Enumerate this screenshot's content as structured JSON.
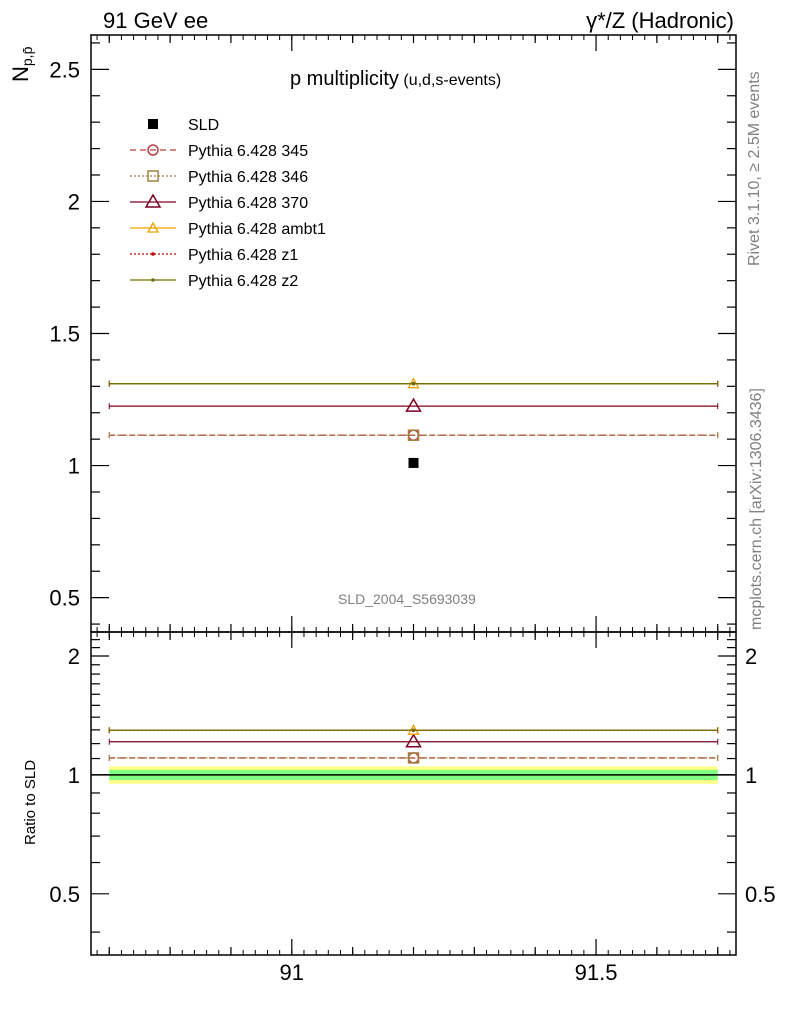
{
  "header": {
    "left": "91 GeV ee",
    "right": "γ*/Z (Hadronic)"
  },
  "side": {
    "rivet": "Rivet 3.1.10, ≥ 2.5M events",
    "mcplots": "mcplots.cern.ch [arXiv:1306.3436]"
  },
  "chart_data": {
    "type": "scatter",
    "title_main": "p multiplicity",
    "title_sub": "(u,d,s-events)",
    "watermark": "SLD_2004_S5693039",
    "ylabel_main": "N",
    "ylabel_sub": "p,p̄",
    "ylabel_ratio": "Ratio to SLD",
    "xlim": [
      90.67,
      91.73
    ],
    "ylim_main": [
      0.37,
      2.63
    ],
    "ylim_ratio": [
      0.35,
      2.3
    ],
    "x_ticks": [
      {
        "value": 91,
        "label": "91"
      },
      {
        "value": 91.5,
        "label": "91.5"
      }
    ],
    "y_ticks_main": [
      {
        "value": 0.5,
        "label": "0.5"
      },
      {
        "value": 1,
        "label": "1"
      },
      {
        "value": 1.5,
        "label": "1.5"
      },
      {
        "value": 2,
        "label": "2"
      },
      {
        "value": 2.5,
        "label": "2.5"
      }
    ],
    "y_ticks_ratio": [
      {
        "value": 0.5,
        "label": "0.5"
      },
      {
        "value": 1,
        "label": "1"
      },
      {
        "value": 2,
        "label": "2"
      }
    ],
    "data": {
      "name": "SLD",
      "x": 91.2,
      "y": 1.01,
      "color": "#000000",
      "ratio_band": [
        0.97,
        1.03
      ],
      "ratio_band_outer": [
        0.95,
        1.05
      ]
    },
    "series": [
      {
        "name": "Pythia 6.428 345",
        "y": 1.115,
        "ratio": 1.104,
        "color": "#bf3f3f",
        "dash": "6,4",
        "marker": "circle-open"
      },
      {
        "name": "Pythia 6.428 346",
        "y": 1.115,
        "ratio": 1.104,
        "color": "#a08040",
        "dash": "2,2",
        "marker": "square-open"
      },
      {
        "name": "Pythia 6.428 370",
        "y": 1.225,
        "ratio": 1.213,
        "color": "#7f0020",
        "dash": "",
        "marker": "triangle-open"
      },
      {
        "name": "Pythia 6.428 ambt1",
        "y": 1.31,
        "ratio": 1.297,
        "color": "#f0a000",
        "dash": "",
        "marker": "triangle-open-small"
      },
      {
        "name": "Pythia 6.428 z1",
        "y": 1.31,
        "ratio": 1.297,
        "color": "#c00000",
        "dash": "2,2",
        "marker": "dot"
      },
      {
        "name": "Pythia 6.428 z2",
        "y": 1.31,
        "ratio": 1.297,
        "color": "#707000",
        "dash": "",
        "marker": "dot"
      }
    ],
    "x_range": [
      90.7,
      91.7
    ]
  }
}
